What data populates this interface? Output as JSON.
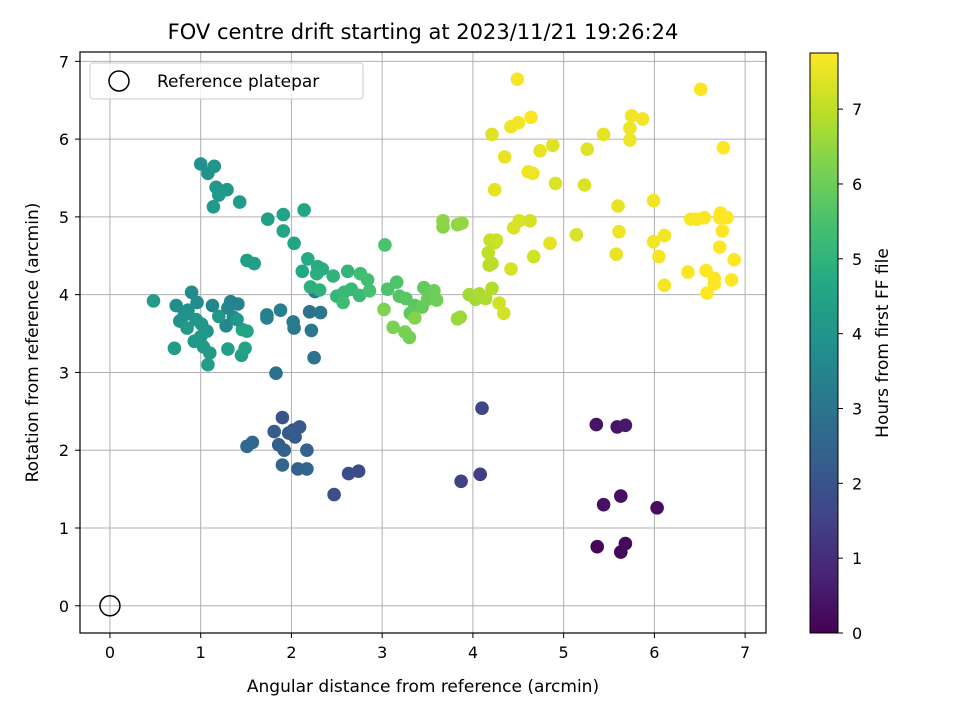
{
  "chart_data": {
    "type": "scatter",
    "title": "FOV centre drift starting at 2023/11/21 19:26:24",
    "xlabel": "Angular distance from reference (arcmin)",
    "ylabel": "Rotation from reference (arcmin)",
    "xlim": [
      -0.33,
      7.23
    ],
    "ylim": [
      -0.35,
      7.12
    ],
    "xticks": [
      0,
      1,
      2,
      3,
      4,
      5,
      6,
      7
    ],
    "yticks": [
      0,
      1,
      2,
      3,
      4,
      5,
      6,
      7
    ],
    "grid": true,
    "legend": {
      "placement": "top-left",
      "entries": [
        "Reference platepar"
      ]
    },
    "reference_point": {
      "x": 0,
      "y": 0
    },
    "colorbar": {
      "label": "Hours from first FF file",
      "colormap": "viridis",
      "range": [
        0,
        7.75
      ],
      "ticks": [
        0,
        1,
        2,
        3,
        4,
        5,
        6,
        7
      ]
    },
    "points": [
      [
        5.37,
        0.76,
        0.1
      ],
      [
        5.63,
        0.69,
        0.15
      ],
      [
        5.68,
        0.8,
        0.2
      ],
      [
        6.03,
        1.26,
        0.25
      ],
      [
        5.63,
        1.41,
        0.3
      ],
      [
        5.44,
        1.3,
        0.35
      ],
      [
        5.36,
        2.33,
        0.4
      ],
      [
        5.59,
        2.3,
        0.45
      ],
      [
        5.68,
        2.32,
        0.5
      ],
      [
        4.08,
        1.69,
        1.4
      ],
      [
        3.87,
        1.6,
        1.5
      ],
      [
        4.1,
        2.54,
        1.6
      ],
      [
        2.74,
        1.73,
        1.75
      ],
      [
        2.63,
        1.7,
        1.85
      ],
      [
        2.47,
        1.43,
        1.9
      ],
      [
        1.9,
        2.42,
        2.0
      ],
      [
        2.02,
        2.26,
        2.05
      ],
      [
        2.09,
        2.3,
        2.1
      ],
      [
        1.97,
        2.22,
        2.15
      ],
      [
        2.04,
        2.17,
        2.2
      ],
      [
        1.81,
        2.24,
        2.25
      ],
      [
        1.86,
        2.07,
        2.3
      ],
      [
        1.92,
        2.0,
        2.35
      ],
      [
        2.17,
        2.0,
        2.4
      ],
      [
        2.07,
        1.76,
        2.45
      ],
      [
        2.17,
        1.76,
        2.5
      ],
      [
        1.9,
        1.81,
        2.55
      ],
      [
        1.57,
        2.1,
        2.6
      ],
      [
        1.51,
        2.05,
        2.65
      ],
      [
        1.83,
        2.99,
        2.85
      ],
      [
        2.25,
        3.19,
        2.9
      ],
      [
        2.2,
        3.78,
        2.95
      ],
      [
        2.32,
        3.77,
        3.0
      ],
      [
        2.26,
        4.04,
        3.05
      ],
      [
        2.22,
        3.54,
        3.1
      ],
      [
        2.03,
        3.57,
        3.15
      ],
      [
        2.02,
        3.65,
        3.2
      ],
      [
        1.88,
        3.8,
        3.25
      ],
      [
        1.73,
        3.74,
        3.3
      ],
      [
        1.73,
        3.7,
        3.35
      ],
      [
        1.41,
        3.88,
        3.4
      ],
      [
        1.33,
        3.91,
        3.45
      ],
      [
        1.3,
        3.83,
        3.5
      ],
      [
        1.13,
        3.86,
        3.55
      ],
      [
        1.28,
        3.6,
        3.6
      ],
      [
        1.36,
        3.71,
        3.65
      ],
      [
        0.9,
        4.03,
        3.7
      ],
      [
        0.96,
        3.9,
        3.75
      ],
      [
        0.73,
        3.86,
        3.8
      ],
      [
        0.82,
        3.74,
        3.85
      ],
      [
        0.86,
        3.8,
        3.9
      ],
      [
        0.77,
        3.66,
        3.95
      ],
      [
        0.95,
        3.68,
        4.0
      ],
      [
        1.01,
        3.62,
        4.05
      ],
      [
        1.07,
        3.53,
        4.1
      ],
      [
        0.93,
        3.4,
        4.15
      ],
      [
        1.03,
        3.33,
        4.2
      ],
      [
        1.1,
        3.25,
        4.25
      ],
      [
        1.08,
        3.1,
        4.3
      ],
      [
        1.3,
        3.3,
        4.35
      ],
      [
        1.45,
        3.22,
        4.4
      ],
      [
        1.49,
        3.31,
        4.45
      ],
      [
        1.46,
        3.55,
        4.5
      ],
      [
        1.51,
        3.53,
        4.55
      ],
      [
        0.71,
        3.31,
        4.3
      ],
      [
        0.48,
        3.92,
        4.25
      ],
      [
        0.85,
        3.57,
        4.2
      ],
      [
        1.0,
        3.46,
        4.15
      ],
      [
        1.2,
        3.72,
        4.1
      ],
      [
        1.4,
        3.68,
        4.05
      ],
      [
        1.0,
        5.68,
        3.9
      ],
      [
        1.08,
        5.56,
        3.95
      ],
      [
        1.15,
        5.65,
        4.0
      ],
      [
        1.17,
        5.38,
        4.05
      ],
      [
        1.29,
        5.35,
        4.1
      ],
      [
        1.2,
        5.28,
        4.15
      ],
      [
        1.14,
        5.13,
        4.2
      ],
      [
        1.43,
        5.19,
        4.25
      ],
      [
        1.51,
        4.44,
        4.3
      ],
      [
        1.59,
        4.4,
        4.35
      ],
      [
        1.74,
        4.97,
        4.4
      ],
      [
        1.91,
        5.03,
        4.45
      ],
      [
        1.91,
        4.82,
        4.5
      ],
      [
        2.03,
        4.66,
        4.55
      ],
      [
        2.14,
        5.09,
        4.6
      ],
      [
        2.12,
        4.3,
        4.65
      ],
      [
        2.18,
        4.46,
        4.7
      ],
      [
        2.29,
        4.36,
        4.75
      ],
      [
        2.34,
        4.33,
        4.8
      ],
      [
        2.28,
        4.27,
        4.85
      ],
      [
        2.21,
        4.1,
        4.9
      ],
      [
        2.31,
        4.06,
        4.95
      ],
      [
        2.46,
        4.24,
        5.0
      ],
      [
        2.62,
        4.3,
        5.05
      ],
      [
        2.5,
        3.98,
        5.1
      ],
      [
        2.58,
        4.03,
        5.15
      ],
      [
        2.66,
        4.07,
        5.2
      ],
      [
        2.75,
        3.99,
        5.25
      ],
      [
        2.57,
        3.9,
        5.3
      ],
      [
        2.76,
        4.27,
        5.35
      ],
      [
        2.84,
        4.19,
        5.4
      ],
      [
        2.86,
        4.05,
        5.45
      ],
      [
        3.03,
        4.64,
        5.5
      ],
      [
        3.06,
        4.07,
        5.55
      ],
      [
        3.16,
        4.16,
        5.6
      ],
      [
        3.19,
        3.98,
        5.65
      ],
      [
        3.26,
        3.95,
        5.7
      ],
      [
        3.36,
        3.86,
        5.75
      ],
      [
        3.31,
        3.76,
        5.8
      ],
      [
        3.46,
        4.09,
        5.85
      ],
      [
        3.44,
        3.84,
        5.9
      ],
      [
        3.5,
        3.94,
        5.95
      ],
      [
        3.57,
        4.05,
        6.0
      ],
      [
        3.6,
        3.93,
        6.05
      ],
      [
        3.3,
        3.45,
        6.1
      ],
      [
        3.25,
        3.52,
        6.15
      ],
      [
        3.12,
        3.58,
        6.2
      ],
      [
        3.02,
        3.81,
        6.25
      ],
      [
        3.36,
        3.7,
        6.3
      ],
      [
        3.67,
        4.87,
        6.35
      ],
      [
        3.67,
        4.95,
        6.4
      ],
      [
        3.83,
        4.9,
        6.45
      ],
      [
        3.88,
        4.92,
        6.5
      ],
      [
        3.83,
        3.69,
        6.55
      ],
      [
        3.86,
        3.71,
        6.6
      ],
      [
        3.96,
        4.0,
        6.65
      ],
      [
        4.03,
        3.94,
        6.7
      ],
      [
        4.07,
        4.01,
        6.75
      ],
      [
        4.14,
        3.95,
        6.8
      ],
      [
        4.21,
        4.08,
        6.85
      ],
      [
        4.18,
        4.38,
        6.9
      ],
      [
        4.21,
        4.4,
        6.95
      ],
      [
        4.17,
        4.54,
        7.0
      ],
      [
        4.24,
        4.67,
        7.05
      ],
      [
        4.19,
        4.7,
        7.1
      ],
      [
        4.26,
        4.7,
        7.15
      ],
      [
        4.29,
        3.89,
        7.2
      ],
      [
        4.34,
        3.76,
        7.25
      ],
      [
        4.42,
        4.33,
        7.3
      ],
      [
        4.45,
        4.86,
        7.35
      ],
      [
        4.21,
        6.06,
        7.4
      ],
      [
        4.24,
        5.35,
        7.45
      ],
      [
        4.35,
        5.77,
        7.5
      ],
      [
        4.42,
        6.16,
        7.55
      ],
      [
        4.5,
        6.21,
        7.6
      ],
      [
        4.49,
        6.77,
        7.65
      ],
      [
        4.64,
        6.28,
        7.7
      ],
      [
        4.61,
        5.58,
        7.6
      ],
      [
        4.66,
        5.56,
        7.55
      ],
      [
        4.74,
        5.85,
        7.5
      ],
      [
        4.85,
        4.66,
        7.45
      ],
      [
        4.88,
        5.92,
        7.4
      ],
      [
        4.91,
        5.43,
        7.35
      ],
      [
        4.51,
        4.95,
        7.3
      ],
      [
        4.63,
        4.95,
        7.25
      ],
      [
        4.67,
        4.49,
        7.2
      ],
      [
        5.14,
        4.77,
        7.3
      ],
      [
        5.23,
        5.41,
        7.35
      ],
      [
        5.26,
        5.87,
        7.4
      ],
      [
        5.44,
        6.06,
        7.45
      ],
      [
        5.58,
        4.52,
        7.5
      ],
      [
        5.6,
        5.14,
        7.5
      ],
      [
        5.61,
        4.81,
        7.55
      ],
      [
        5.73,
        6.14,
        7.55
      ],
      [
        5.73,
        5.99,
        7.55
      ],
      [
        5.75,
        6.3,
        7.6
      ],
      [
        5.87,
        6.26,
        7.6
      ],
      [
        5.99,
        5.21,
        7.6
      ],
      [
        5.99,
        4.68,
        7.65
      ],
      [
        6.05,
        4.49,
        7.65
      ],
      [
        6.11,
        4.12,
        7.65
      ],
      [
        6.11,
        4.76,
        7.65
      ],
      [
        6.37,
        4.29,
        7.7
      ],
      [
        6.4,
        4.97,
        7.7
      ],
      [
        6.47,
        4.97,
        7.7
      ],
      [
        6.55,
        4.99,
        7.7
      ],
      [
        6.51,
        6.64,
        7.7
      ],
      [
        6.57,
        4.31,
        7.75
      ],
      [
        6.58,
        4.02,
        7.75
      ],
      [
        6.66,
        4.14,
        7.75
      ],
      [
        6.66,
        4.21,
        7.75
      ],
      [
        6.72,
        4.61,
        7.75
      ],
      [
        6.72,
        4.99,
        7.75
      ],
      [
        6.73,
        5.05,
        7.75
      ],
      [
        6.75,
        4.82,
        7.75
      ],
      [
        6.76,
        5.89,
        7.75
      ],
      [
        6.8,
        4.99,
        7.75
      ],
      [
        6.85,
        4.19,
        7.75
      ],
      [
        6.88,
        4.45,
        7.75
      ]
    ]
  }
}
